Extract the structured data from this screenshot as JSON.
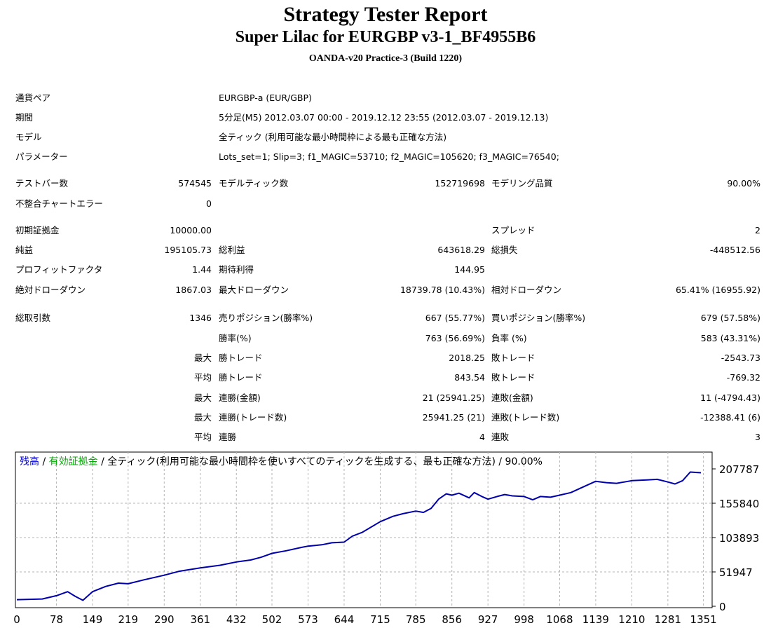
{
  "header": {
    "title": "Strategy Tester Report",
    "subtitle": "Super Lilac for EURGBP v3-1_BF4955B6",
    "server": "OANDA-v20 Practice-3 (Build 1220)"
  },
  "settings": [
    {
      "label": "通貨ペア",
      "value": "EURGBP-a (EUR/GBP)"
    },
    {
      "label": "期間",
      "value": "5分足(M5) 2012.03.07 00:00 - 2019.12.12 23:55 (2012.03.07 - 2019.12.13)"
    },
    {
      "label": "モデル",
      "value": "全ティック (利用可能な最小時間枠による最も正確な方法)"
    },
    {
      "label": "パラメーター",
      "value": "Lots_set=1; Slip=3; f1_MAGIC=53710; f2_MAGIC=105620; f3_MAGIC=76540;"
    }
  ],
  "rows": [
    {
      "c1l": "テストバー数",
      "c1v": "574545",
      "c2l": "モデルティック数",
      "c2v": "152719698",
      "c3l": "モデリング品質",
      "c3v": "90.00%"
    },
    {
      "c1l": "不整合チャートエラー",
      "c1v": "0",
      "c2l": "",
      "c2v": "",
      "c3l": "",
      "c3v": ""
    },
    {
      "c1l": "初期証拠金",
      "c1v": "10000.00",
      "c2l": "",
      "c2v": "",
      "c3l": "スプレッド",
      "c3v": "2"
    },
    {
      "c1l": "純益",
      "c1v": "195105.73",
      "c2l": "総利益",
      "c2v": "643618.29",
      "c3l": "総損失",
      "c3v": "-448512.56"
    },
    {
      "c1l": "プロフィットファクタ",
      "c1v": "1.44",
      "c2l": "期待利得",
      "c2v": "144.95",
      "c3l": "",
      "c3v": ""
    },
    {
      "c1l": "絶対ドローダウン",
      "c1v": "1867.03",
      "c2l": "最大ドローダウン",
      "c2v": "18739.78 (10.43%)",
      "c3l": "相対ドローダウン",
      "c3v": "65.41% (16955.92)"
    },
    {
      "c1l": "総取引数",
      "c1v": "1346",
      "c2l": "売りポジション(勝率%)",
      "c2v": "667 (55.77%)",
      "c3l": "買いポジション(勝率%)",
      "c3v": "679 (57.58%)"
    },
    {
      "c1l": "",
      "c1v": "",
      "c2l": "勝率(%)",
      "c2v": "763 (56.69%)",
      "c3l": "負率 (%)",
      "c3v": "583 (43.31%)"
    },
    {
      "c1l": "",
      "c1v": "最大",
      "c2l": "勝トレード",
      "c2v": "2018.25",
      "c3l": "敗トレード",
      "c3v": "-2543.73"
    },
    {
      "c1l": "",
      "c1v": "平均",
      "c2l": "勝トレード",
      "c2v": "843.54",
      "c3l": "敗トレード",
      "c3v": "-769.32"
    },
    {
      "c1l": "",
      "c1v": "最大",
      "c2l": "連勝(金額)",
      "c2v": "21 (25941.25)",
      "c3l": "連敗(金額)",
      "c3v": "11 (-4794.43)"
    },
    {
      "c1l": "",
      "c1v": "最大",
      "c2l": "連勝(トレード数)",
      "c2v": "25941.25 (21)",
      "c3l": "連敗(トレード数)",
      "c3v": "-12388.41 (6)"
    },
    {
      "c1l": "",
      "c1v": "平均",
      "c2l": "連勝",
      "c2v": "4",
      "c3l": "連敗",
      "c3v": "3"
    }
  ],
  "chart_data": {
    "type": "line",
    "legend": [
      {
        "text": "残高",
        "color": "#0000cc"
      },
      {
        "text": " / ",
        "color": "#000000"
      },
      {
        "text": "有効証拠金",
        "color": "#00aa00"
      },
      {
        "text": " / 全ティック(利用可能な最小時間枠を使いすべてのティックを生成する、最も正確な方法) / 90.00%",
        "color": "#000000"
      }
    ],
    "x_ticks": [
      "0",
      "78",
      "149",
      "219",
      "290",
      "361",
      "432",
      "502",
      "573",
      "644",
      "715",
      "785",
      "856",
      "927",
      "998",
      "1068",
      "1139",
      "1210",
      "1281",
      "1351"
    ],
    "y_ticks": [
      "207787",
      "155840",
      "103893",
      "51947",
      "0"
    ],
    "ylim": [
      0,
      207787
    ],
    "xlim": [
      0,
      1346
    ],
    "grid": true,
    "series": [
      {
        "name": "残高",
        "color": "#0000aa",
        "points": [
          [
            0,
            10000
          ],
          [
            50,
            11000
          ],
          [
            78,
            16000
          ],
          [
            100,
            22000
          ],
          [
            115,
            15000
          ],
          [
            130,
            9000
          ],
          [
            149,
            22000
          ],
          [
            175,
            30000
          ],
          [
            200,
            35000
          ],
          [
            219,
            34000
          ],
          [
            250,
            40000
          ],
          [
            290,
            47000
          ],
          [
            320,
            53000
          ],
          [
            361,
            58000
          ],
          [
            400,
            62000
          ],
          [
            432,
            67000
          ],
          [
            460,
            70000
          ],
          [
            480,
            74000
          ],
          [
            502,
            80000
          ],
          [
            530,
            84000
          ],
          [
            560,
            89000
          ],
          [
            573,
            91000
          ],
          [
            600,
            93000
          ],
          [
            620,
            96000
          ],
          [
            644,
            97000
          ],
          [
            660,
            106000
          ],
          [
            680,
            112000
          ],
          [
            715,
            128000
          ],
          [
            740,
            136000
          ],
          [
            760,
            140000
          ],
          [
            785,
            144000
          ],
          [
            800,
            142000
          ],
          [
            815,
            148000
          ],
          [
            830,
            162000
          ],
          [
            845,
            170000
          ],
          [
            856,
            168000
          ],
          [
            870,
            171000
          ],
          [
            890,
            164000
          ],
          [
            900,
            172000
          ],
          [
            915,
            166000
          ],
          [
            927,
            162000
          ],
          [
            945,
            166000
          ],
          [
            960,
            169000
          ],
          [
            975,
            167000
          ],
          [
            998,
            166000
          ],
          [
            1015,
            161000
          ],
          [
            1030,
            166000
          ],
          [
            1050,
            165000
          ],
          [
            1068,
            168000
          ],
          [
            1090,
            172000
          ],
          [
            1110,
            179000
          ],
          [
            1139,
            189000
          ],
          [
            1160,
            187000
          ],
          [
            1180,
            186000
          ],
          [
            1210,
            190000
          ],
          [
            1240,
            191000
          ],
          [
            1260,
            192000
          ],
          [
            1281,
            188000
          ],
          [
            1295,
            185000
          ],
          [
            1310,
            190000
          ],
          [
            1325,
            203000
          ],
          [
            1346,
            202000
          ]
        ]
      }
    ]
  }
}
